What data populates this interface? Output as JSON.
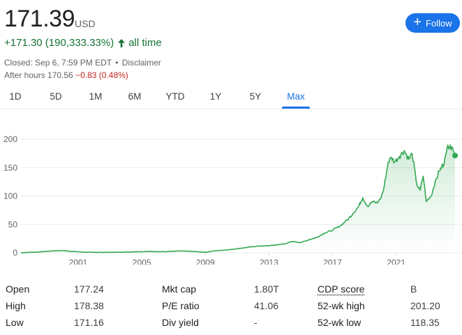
{
  "quote": {
    "price": "171.39",
    "currency": "USD",
    "change": "+171.30 (190,333.33%)",
    "period": "all time",
    "closed": "Closed: Sep 6, 7:59 PM EDT",
    "separator": "•",
    "disclaimer": "Disclaimer",
    "after_hours_label": "After hours 170.56",
    "after_hours_change": "−0.83 (0.48%)"
  },
  "follow_button": {
    "label": "Follow",
    "icon": "plus-icon"
  },
  "tabs": [
    {
      "label": "1D"
    },
    {
      "label": "5D"
    },
    {
      "label": "1M"
    },
    {
      "label": "6M"
    },
    {
      "label": "YTD"
    },
    {
      "label": "1Y"
    },
    {
      "label": "5Y"
    },
    {
      "label": "Max"
    }
  ],
  "active_tab": "Max",
  "colors": {
    "up": "#137333",
    "line": "#34a853",
    "down": "#c5221f",
    "accent": "#1a73e8"
  },
  "chart_data": {
    "type": "area",
    "ylim": [
      0,
      200
    ],
    "y_ticks": [
      "0",
      "50",
      "100",
      "150",
      "200"
    ],
    "x_ticks": [
      "2001",
      "2005",
      "2009",
      "2013",
      "2017",
      "2021"
    ],
    "grid": true,
    "series": [
      {
        "x": [
          1997.4,
          1998.5,
          1999.5,
          2000.0,
          2000.6,
          2001.5,
          2002.5,
          2003.5,
          2004.5,
          2005.5,
          2006.5,
          2007.5,
          2008.5,
          2009.0,
          2009.6,
          2010.5,
          2011.5,
          2012.0,
          2012.5,
          2013.0,
          2013.5,
          2014.0,
          2014.5,
          2015.0,
          2015.5,
          2016.0,
          2016.5,
          2017.0,
          2017.5,
          2018.0,
          2018.3,
          2018.6,
          2018.9,
          2019.2,
          2019.5,
          2019.8,
          2020.0,
          2020.2,
          2020.5,
          2020.7,
          2020.9,
          2021.2,
          2021.5,
          2021.8,
          2022.0,
          2022.3,
          2022.5,
          2022.7,
          2022.9,
          2023.2,
          2023.5,
          2023.8,
          2024.0,
          2024.2,
          2024.4,
          2024.6,
          2024.7
        ],
        "y": [
          0.1,
          1.5,
          3.5,
          4.0,
          2.5,
          1.0,
          0.8,
          1.0,
          1.8,
          2.3,
          2.0,
          3.3,
          2.0,
          1.0,
          3.5,
          5.5,
          9.0,
          11.0,
          12.0,
          12.5,
          14.0,
          16.0,
          20.0,
          18.0,
          23.0,
          27.0,
          35.0,
          40.0,
          48.0,
          60.0,
          70.0,
          80.0,
          97.0,
          82.0,
          90.0,
          88.0,
          95.0,
          110.0,
          160.0,
          168.0,
          160.0,
          170.0,
          180.0,
          165.0,
          175.0,
          120.0,
          110.0,
          135.0,
          90.0,
          100.0,
          130.0,
          150.0,
          155.0,
          185.0,
          190.0,
          178.0,
          171.39
        ]
      }
    ]
  },
  "stats": {
    "col1": [
      {
        "label": "Open",
        "value": "177.24"
      },
      {
        "label": "High",
        "value": "178.38"
      },
      {
        "label": "Low",
        "value": "171.16"
      }
    ],
    "col2": [
      {
        "label": "Mkt cap",
        "value": "1.80T"
      },
      {
        "label": "P/E ratio",
        "value": "41.06"
      },
      {
        "label": "Div yield",
        "value": "-"
      }
    ],
    "col3": [
      {
        "label": "CDP score",
        "value": "B"
      },
      {
        "label": "52-wk high",
        "value": "201.20"
      },
      {
        "label": "52-wk low",
        "value": "118.35"
      }
    ]
  }
}
